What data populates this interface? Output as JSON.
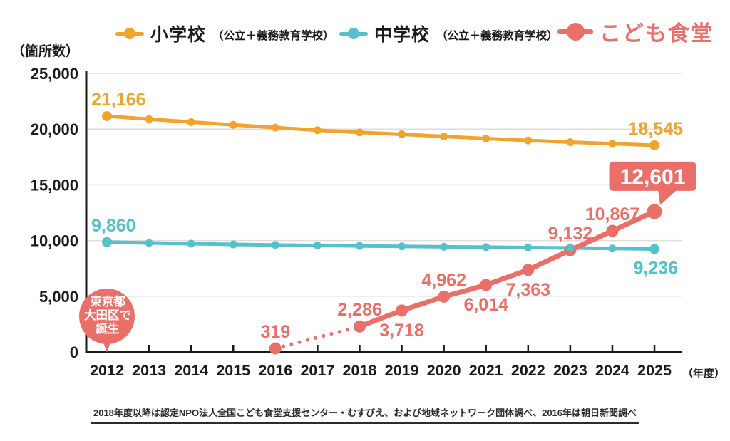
{
  "chart": {
    "y_unit": "（箇所数）",
    "x_unit": "（年度）"
  },
  "legend": {
    "items": [
      {
        "label": "小学校",
        "sub": "（公立＋義務教育学校）",
        "color": "#F0A42E"
      },
      {
        "label": "中学校",
        "sub": "（公立＋義務教育学校）",
        "color": "#56C1CB"
      },
      {
        "label": "こども食堂",
        "sub": "",
        "color": "#EA6F68"
      }
    ]
  },
  "annotation": {
    "lines": [
      "東京都",
      "大田区で",
      "誕生"
    ],
    "x": 2012,
    "color": "#EA6F68",
    "text_color": "#ffffff"
  },
  "footnote": "2018年度以降は認定NPO法人全国こども食堂支援センター・むすびえ、および地域ネットワーク団体調べ、2016年は朝日新聞調べ",
  "chart_data": {
    "type": "line",
    "title": "",
    "x": [
      2012,
      2013,
      2014,
      2015,
      2016,
      2017,
      2018,
      2019,
      2020,
      2021,
      2022,
      2023,
      2024,
      2025
    ],
    "xlabel": "年度",
    "ylabel": "箇所数",
    "ylim": [
      0,
      25000
    ],
    "yticks": [
      0,
      5000,
      10000,
      15000,
      20000,
      25000
    ],
    "grid": "horizontal",
    "legend_position": "top",
    "series": [
      {
        "name": "小学校（公立＋義務教育学校）",
        "color": "#F0A42E",
        "dot_radius": 5.5,
        "values": [
          21166,
          20890,
          20630,
          20380,
          20130,
          19900,
          19700,
          19530,
          19340,
          19150,
          18980,
          18830,
          18690,
          18545
        ],
        "labeled_values_note": "only first and last values are printed on the chart; intermediate values estimated from pixels",
        "point_labels": [
          {
            "x": 2012,
            "text": "21,166",
            "pos": "above-start"
          },
          {
            "x": 2025,
            "text": "18,545",
            "pos": "above-end"
          }
        ]
      },
      {
        "name": "中学校（公立＋義務教育学校）",
        "color": "#56C1CB",
        "dot_radius": 5.5,
        "values": [
          9860,
          9784,
          9718,
          9655,
          9601,
          9555,
          9517,
          9480,
          9442,
          9404,
          9371,
          9339,
          9285,
          9236
        ],
        "labeled_values_note": "only first and last values are printed on the chart; intermediate values estimated from pixels",
        "point_labels": [
          {
            "x": 2012,
            "text": "9,860",
            "pos": "above-start"
          },
          {
            "x": 2025,
            "text": "9,236",
            "pos": "below-end"
          }
        ]
      },
      {
        "name": "こども食堂",
        "color": "#EA6F68",
        "dot_radius": 8.5,
        "dotted_until": 2018,
        "values": [
          null,
          null,
          null,
          null,
          319,
          null,
          2286,
          3718,
          4962,
          6014,
          7363,
          9132,
          10867,
          12601
        ],
        "point_labels": [
          {
            "x": 2016,
            "text": "319",
            "pos": "above"
          },
          {
            "x": 2018,
            "text": "2,286",
            "pos": "above"
          },
          {
            "x": 2019,
            "text": "3,718",
            "pos": "below"
          },
          {
            "x": 2020,
            "text": "4,962",
            "pos": "above"
          },
          {
            "x": 2021,
            "text": "6,014",
            "pos": "below"
          },
          {
            "x": 2022,
            "text": "7,363",
            "pos": "below"
          },
          {
            "x": 2023,
            "text": "9,132",
            "pos": "above"
          },
          {
            "x": 2024,
            "text": "10,867",
            "pos": "above"
          },
          {
            "x": 2025,
            "text": "12,601",
            "pos": "badge"
          }
        ]
      }
    ],
    "overlap_marker": {
      "series_index": 1,
      "x": 2023
    }
  }
}
